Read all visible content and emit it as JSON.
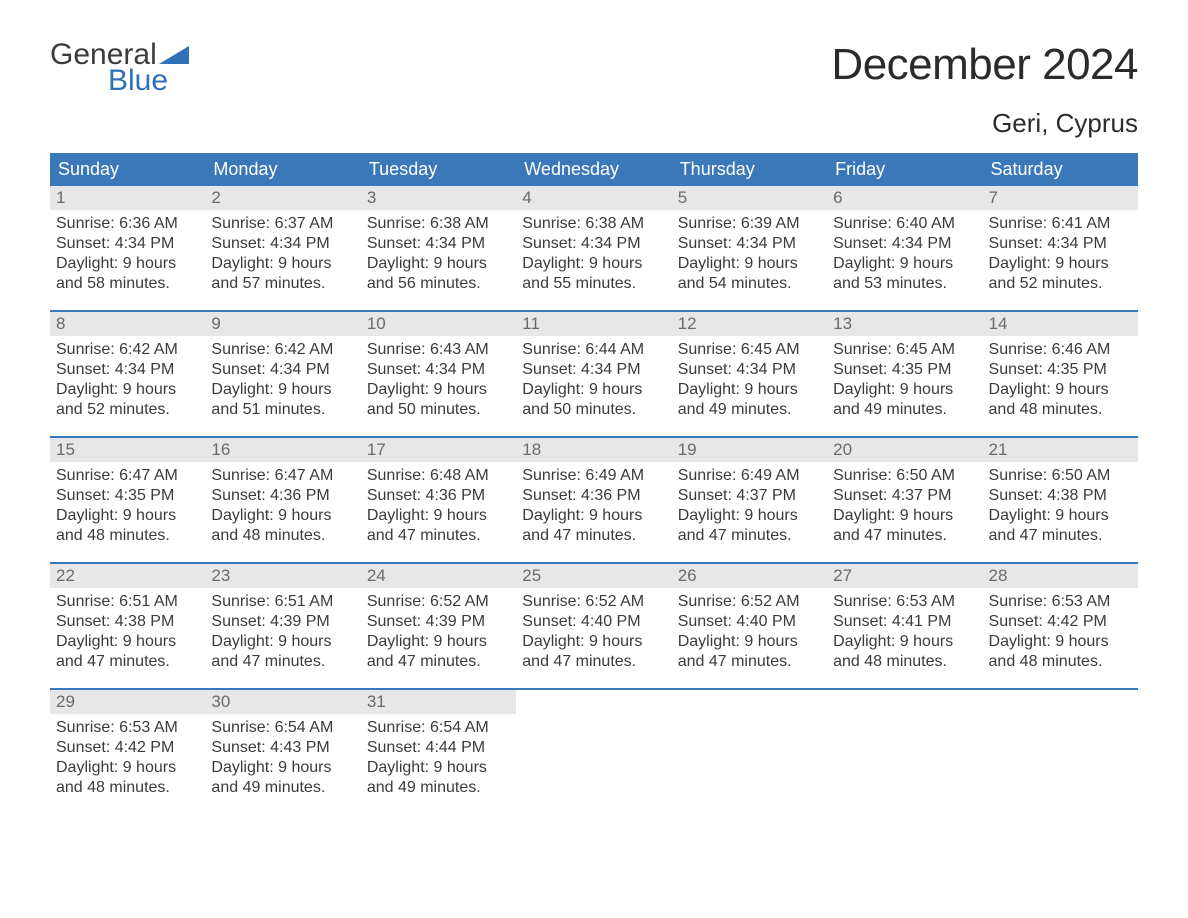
{
  "brand": {
    "word1": "General",
    "word2": "Blue"
  },
  "title": "December 2024",
  "location": "Geri, Cyprus",
  "colors": {
    "header_bg": "#3a78b9",
    "header_text": "#ffffff",
    "daynum_bg": "#e7e7e7",
    "daynum_text": "#6a6a6a",
    "body_text": "#3b3b3b",
    "rule": "#3a78b9",
    "brand_blue": "#2e71b8",
    "page_bg": "#ffffff"
  },
  "typography": {
    "title_fontsize": 44,
    "location_fontsize": 26,
    "dow_fontsize": 18,
    "daynum_fontsize": 17,
    "cell_fontsize": 16,
    "font_family": "Arial"
  },
  "dow": [
    "Sunday",
    "Monday",
    "Tuesday",
    "Wednesday",
    "Thursday",
    "Friday",
    "Saturday"
  ],
  "labels": {
    "sunrise": "Sunrise:",
    "sunset": "Sunset:",
    "daylight": "Daylight:"
  },
  "weeks": [
    [
      {
        "n": "1",
        "sunrise": "6:36 AM",
        "sunset": "4:34 PM",
        "dl": "9 hours and 58 minutes."
      },
      {
        "n": "2",
        "sunrise": "6:37 AM",
        "sunset": "4:34 PM",
        "dl": "9 hours and 57 minutes."
      },
      {
        "n": "3",
        "sunrise": "6:38 AM",
        "sunset": "4:34 PM",
        "dl": "9 hours and 56 minutes."
      },
      {
        "n": "4",
        "sunrise": "6:38 AM",
        "sunset": "4:34 PM",
        "dl": "9 hours and 55 minutes."
      },
      {
        "n": "5",
        "sunrise": "6:39 AM",
        "sunset": "4:34 PM",
        "dl": "9 hours and 54 minutes."
      },
      {
        "n": "6",
        "sunrise": "6:40 AM",
        "sunset": "4:34 PM",
        "dl": "9 hours and 53 minutes."
      },
      {
        "n": "7",
        "sunrise": "6:41 AM",
        "sunset": "4:34 PM",
        "dl": "9 hours and 52 minutes."
      }
    ],
    [
      {
        "n": "8",
        "sunrise": "6:42 AM",
        "sunset": "4:34 PM",
        "dl": "9 hours and 52 minutes."
      },
      {
        "n": "9",
        "sunrise": "6:42 AM",
        "sunset": "4:34 PM",
        "dl": "9 hours and 51 minutes."
      },
      {
        "n": "10",
        "sunrise": "6:43 AM",
        "sunset": "4:34 PM",
        "dl": "9 hours and 50 minutes."
      },
      {
        "n": "11",
        "sunrise": "6:44 AM",
        "sunset": "4:34 PM",
        "dl": "9 hours and 50 minutes."
      },
      {
        "n": "12",
        "sunrise": "6:45 AM",
        "sunset": "4:34 PM",
        "dl": "9 hours and 49 minutes."
      },
      {
        "n": "13",
        "sunrise": "6:45 AM",
        "sunset": "4:35 PM",
        "dl": "9 hours and 49 minutes."
      },
      {
        "n": "14",
        "sunrise": "6:46 AM",
        "sunset": "4:35 PM",
        "dl": "9 hours and 48 minutes."
      }
    ],
    [
      {
        "n": "15",
        "sunrise": "6:47 AM",
        "sunset": "4:35 PM",
        "dl": "9 hours and 48 minutes."
      },
      {
        "n": "16",
        "sunrise": "6:47 AM",
        "sunset": "4:36 PM",
        "dl": "9 hours and 48 minutes."
      },
      {
        "n": "17",
        "sunrise": "6:48 AM",
        "sunset": "4:36 PM",
        "dl": "9 hours and 47 minutes."
      },
      {
        "n": "18",
        "sunrise": "6:49 AM",
        "sunset": "4:36 PM",
        "dl": "9 hours and 47 minutes."
      },
      {
        "n": "19",
        "sunrise": "6:49 AM",
        "sunset": "4:37 PM",
        "dl": "9 hours and 47 minutes."
      },
      {
        "n": "20",
        "sunrise": "6:50 AM",
        "sunset": "4:37 PM",
        "dl": "9 hours and 47 minutes."
      },
      {
        "n": "21",
        "sunrise": "6:50 AM",
        "sunset": "4:38 PM",
        "dl": "9 hours and 47 minutes."
      }
    ],
    [
      {
        "n": "22",
        "sunrise": "6:51 AM",
        "sunset": "4:38 PM",
        "dl": "9 hours and 47 minutes."
      },
      {
        "n": "23",
        "sunrise": "6:51 AM",
        "sunset": "4:39 PM",
        "dl": "9 hours and 47 minutes."
      },
      {
        "n": "24",
        "sunrise": "6:52 AM",
        "sunset": "4:39 PM",
        "dl": "9 hours and 47 minutes."
      },
      {
        "n": "25",
        "sunrise": "6:52 AM",
        "sunset": "4:40 PM",
        "dl": "9 hours and 47 minutes."
      },
      {
        "n": "26",
        "sunrise": "6:52 AM",
        "sunset": "4:40 PM",
        "dl": "9 hours and 47 minutes."
      },
      {
        "n": "27",
        "sunrise": "6:53 AM",
        "sunset": "4:41 PM",
        "dl": "9 hours and 48 minutes."
      },
      {
        "n": "28",
        "sunrise": "6:53 AM",
        "sunset": "4:42 PM",
        "dl": "9 hours and 48 minutes."
      }
    ],
    [
      {
        "n": "29",
        "sunrise": "6:53 AM",
        "sunset": "4:42 PM",
        "dl": "9 hours and 48 minutes."
      },
      {
        "n": "30",
        "sunrise": "6:54 AM",
        "sunset": "4:43 PM",
        "dl": "9 hours and 49 minutes."
      },
      {
        "n": "31",
        "sunrise": "6:54 AM",
        "sunset": "4:44 PM",
        "dl": "9 hours and 49 minutes."
      },
      {
        "empty": true
      },
      {
        "empty": true
      },
      {
        "empty": true
      },
      {
        "empty": true
      }
    ]
  ]
}
